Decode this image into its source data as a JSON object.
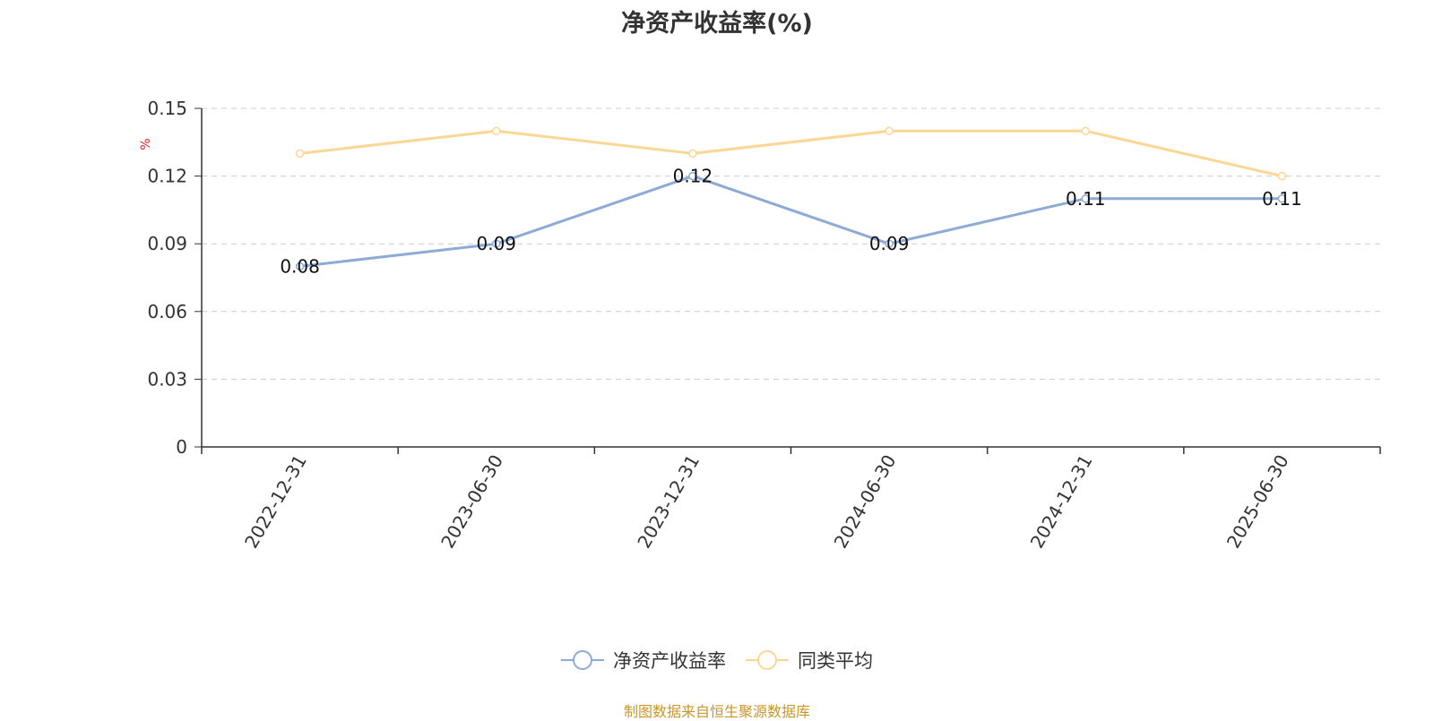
{
  "chart_data": {
    "type": "line",
    "title": "净资产收益率(%)",
    "ylabel": "%",
    "xlabel": "",
    "categories": [
      "2022-12-31",
      "2023-06-30",
      "2023-12-31",
      "2024-06-30",
      "2024-12-31",
      "2025-06-30"
    ],
    "ylim": [
      0,
      0.15
    ],
    "yticks": [
      "0",
      "0.03",
      "0.06",
      "0.09",
      "0.12",
      "0.15"
    ],
    "grid": true,
    "legend_position": "bottom",
    "series": [
      {
        "name": "净资产收益率",
        "color": "#8eaad6",
        "values": [
          0.08,
          0.09,
          0.12,
          0.09,
          0.11,
          0.11
        ],
        "labels": [
          "0.08",
          "0.09",
          "0.12",
          "0.09",
          "0.11",
          "0.11"
        ]
      },
      {
        "name": "同类平均",
        "color": "#fbd795",
        "values": [
          0.13,
          0.14,
          0.13,
          0.14,
          0.14,
          0.12
        ]
      }
    ],
    "source_note": "制图数据来自恒生聚源数据库"
  }
}
